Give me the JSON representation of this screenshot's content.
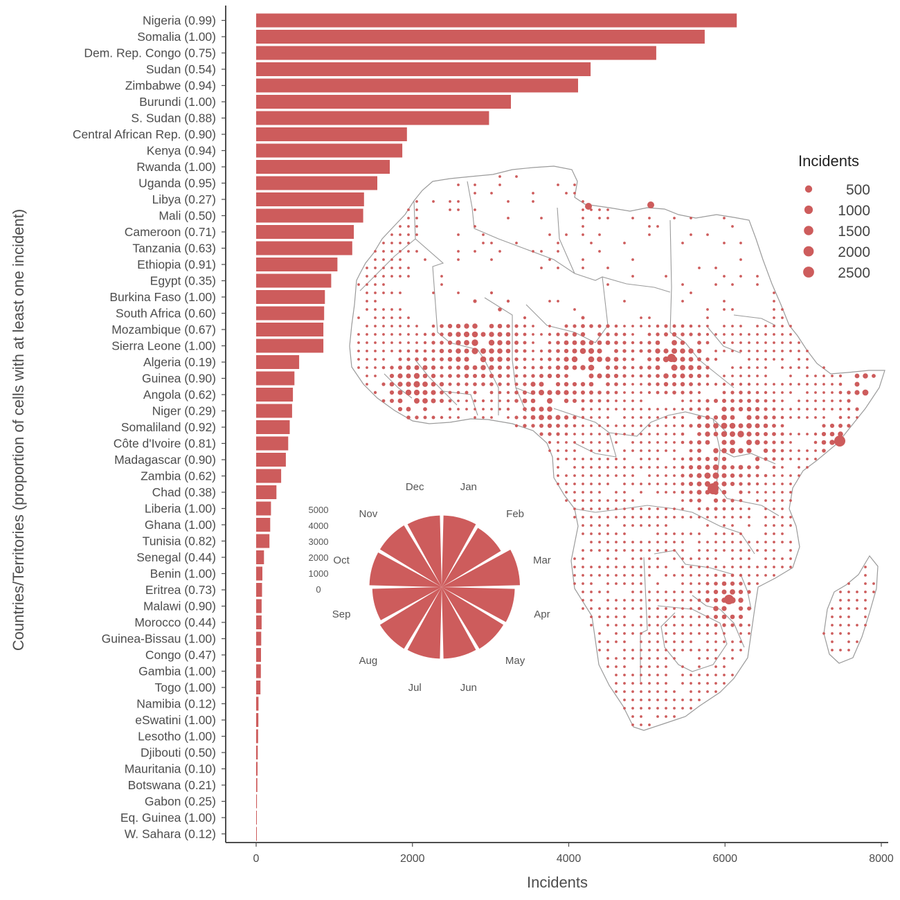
{
  "colors": {
    "bar": "#CD5C5C",
    "axis": "#4d4d4d",
    "map_border": "#9a9a9a"
  },
  "chart_data": [
    {
      "type": "bar",
      "orientation": "horizontal",
      "categories": [
        "Nigeria (0.99)",
        "Somalia (1.00)",
        "Dem. Rep. Congo (0.75)",
        "Sudan (0.54)",
        "Zimbabwe (0.94)",
        "Burundi (1.00)",
        "S. Sudan (0.88)",
        "Central African Rep. (0.90)",
        "Kenya (0.94)",
        "Rwanda (1.00)",
        "Uganda (0.95)",
        "Libya (0.27)",
        "Mali (0.50)",
        "Cameroon (0.71)",
        "Tanzania (0.63)",
        "Ethiopia (0.91)",
        "Egypt (0.35)",
        "Burkina Faso (1.00)",
        "South Africa (0.60)",
        "Mozambique (0.67)",
        "Sierra Leone (1.00)",
        "Algeria (0.19)",
        "Guinea (0.90)",
        "Angola (0.62)",
        "Niger (0.29)",
        "Somaliland (0.92)",
        "Côte d'Ivoire (0.81)",
        "Madagascar (0.90)",
        "Zambia (0.62)",
        "Chad (0.38)",
        "Liberia (1.00)",
        "Ghana (1.00)",
        "Tunisia (0.82)",
        "Senegal (0.44)",
        "Benin (1.00)",
        "Eritrea (0.73)",
        "Malawi (0.90)",
        "Morocco (0.44)",
        "Guinea-Bissau (1.00)",
        "Congo (0.47)",
        "Gambia (1.00)",
        "Togo (1.00)",
        "Namibia (0.12)",
        "eSwatini (1.00)",
        "Lesotho (1.00)",
        "Djibouti (0.50)",
        "Mauritania (0.10)",
        "Botswana (0.21)",
        "Gabon (0.25)",
        "Eq. Guinea (1.00)",
        "W. Sahara (0.12)"
      ],
      "values": [
        6150,
        5740,
        5120,
        4280,
        4120,
        3260,
        2980,
        1930,
        1870,
        1710,
        1550,
        1380,
        1370,
        1250,
        1230,
        1040,
        960,
        880,
        870,
        860,
        860,
        550,
        490,
        470,
        460,
        430,
        410,
        380,
        320,
        260,
        190,
        180,
        170,
        100,
        80,
        75,
        70,
        70,
        65,
        62,
        60,
        55,
        30,
        28,
        25,
        20,
        18,
        15,
        10,
        5,
        3
      ],
      "xlabel": "Incidents",
      "ylabel": "Countries/Territories (proportion of cells with at least one incident)",
      "xlim": [
        -400,
        8000
      ],
      "xticks": [
        "0",
        "2000",
        "4000",
        "6000",
        "8000"
      ],
      "xtick_values": [
        0,
        2000,
        4000,
        6000,
        8000
      ]
    },
    {
      "type": "pie",
      "variant": "polar-bar",
      "categories": [
        "Jan",
        "Feb",
        "Mar",
        "Apr",
        "May",
        "Jun",
        "Jul",
        "Aug",
        "Sep",
        "Oct",
        "Nov",
        "Dec"
      ],
      "values": [
        4850,
        4700,
        5300,
        4950,
        4900,
        4850,
        4850,
        4900,
        4700,
        4900,
        4900,
        4850
      ],
      "radial_ticks": [
        "5000",
        "4000",
        "3000",
        "2000",
        "1000",
        "0"
      ],
      "radial_tick_values": [
        5000,
        4000,
        3000,
        2000,
        1000,
        0
      ],
      "rmax": 5300
    },
    {
      "type": "scatter",
      "variant": "proportional-symbol-map",
      "legend_title": "Incidents",
      "legend_labels": [
        "500",
        "1000",
        "1500",
        "2000",
        "2500"
      ],
      "legend_values": [
        500,
        1000,
        1500,
        2000,
        2500
      ],
      "legend_position": "right"
    }
  ]
}
